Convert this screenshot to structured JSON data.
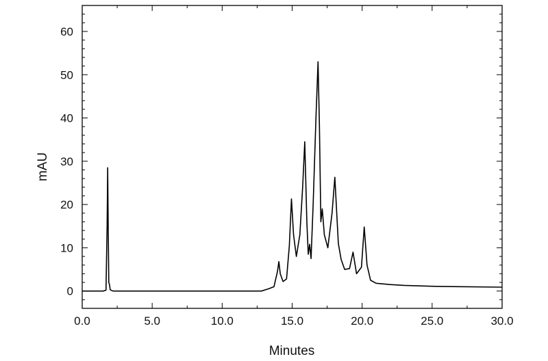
{
  "chart_data": {
    "type": "line",
    "title": "",
    "xlabel": "Minutes",
    "ylabel": "mAU",
    "xlim": [
      0,
      30
    ],
    "ylim": [
      -4,
      66
    ],
    "x_ticks": [
      {
        "value": 0,
        "label": "0.0"
      },
      {
        "value": 5,
        "label": "5.0"
      },
      {
        "value": 10,
        "label": "10.0"
      },
      {
        "value": 15,
        "label": "15.0"
      },
      {
        "value": 20,
        "label": "20.0"
      },
      {
        "value": 25,
        "label": "25.0"
      },
      {
        "value": 30,
        "label": "30.0"
      }
    ],
    "y_ticks": [
      {
        "value": 0,
        "label": "0"
      },
      {
        "value": 10,
        "label": "10"
      },
      {
        "value": 20,
        "label": "20"
      },
      {
        "value": 30,
        "label": "30"
      },
      {
        "value": 40,
        "label": "40"
      },
      {
        "value": 50,
        "label": "50"
      },
      {
        "value": 60,
        "label": "60"
      }
    ],
    "grid": false,
    "line_color": "#000000",
    "series": [
      {
        "x": [
          0.0,
          1.5,
          1.7,
          1.78,
          1.82,
          1.86,
          1.9,
          1.95,
          2.0,
          2.2,
          5.0,
          10.0,
          12.8,
          13.3,
          13.7,
          13.95,
          14.05,
          14.15,
          14.35,
          14.6,
          14.8,
          14.95,
          15.1,
          15.3,
          15.55,
          15.75,
          15.9,
          16.05,
          16.15,
          16.25,
          16.35,
          16.5,
          16.7,
          16.85,
          16.95,
          17.05,
          17.15,
          17.3,
          17.55,
          17.85,
          18.05,
          18.3,
          18.5,
          18.75,
          19.1,
          19.35,
          19.6,
          19.95,
          20.15,
          20.35,
          20.6,
          21.0,
          22.0,
          23.0,
          25.0,
          27.0,
          30.0
        ],
        "y": [
          0.0,
          0.0,
          0.2,
          15.0,
          28.5,
          14.0,
          2.0,
          1.5,
          0.3,
          0.0,
          0.0,
          0.0,
          0.0,
          0.5,
          1.0,
          4.5,
          6.8,
          4.0,
          2.2,
          2.8,
          10.5,
          21.3,
          13.0,
          8.0,
          13.0,
          24.0,
          34.5,
          16.0,
          8.5,
          10.8,
          7.5,
          20.0,
          40.0,
          53.0,
          38.0,
          16.0,
          19.0,
          13.0,
          10.0,
          18.0,
          26.3,
          11.0,
          7.3,
          5.0,
          5.2,
          9.0,
          4.0,
          5.5,
          14.8,
          6.0,
          2.5,
          1.8,
          1.5,
          1.3,
          1.1,
          1.0,
          0.9
        ]
      }
    ]
  }
}
